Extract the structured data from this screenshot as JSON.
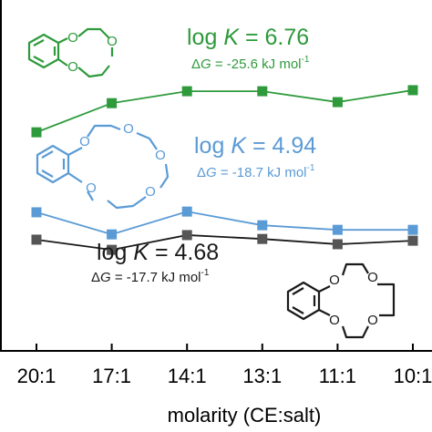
{
  "chart_data": {
    "type": "line",
    "x_label": "molarity (CE:salt)",
    "categories": [
      "20:1",
      "17:1",
      "14:1",
      "13:1",
      "11:1",
      "10:1"
    ],
    "ylim": [
      0,
      100
    ],
    "series": [
      {
        "color": "#2e9a3c",
        "values": [
          62.3,
          70.6,
          74.0,
          74.0,
          70.9,
          74.3
        ]
      },
      {
        "color": "#5b9bd5",
        "values": [
          39.5,
          33.2,
          39.7,
          35.8,
          34.5,
          34.5
        ]
      },
      {
        "color": "#1a1a1a",
        "markercolor": "#555555",
        "values": [
          31.7,
          28.8,
          33.0,
          31.9,
          30.4,
          31.4
        ]
      }
    ],
    "annotations": [
      {
        "color": "#2e9a3c",
        "logk": [
          "log ",
          "K",
          " = 6.76"
        ],
        "dg": [
          "Δ",
          "G",
          " = -25.6 kJ mol",
          "-1"
        ]
      },
      {
        "color": "#5b9bd5",
        "logk": [
          "log ",
          "K",
          " = 4.94"
        ],
        "dg": [
          "Δ",
          "G",
          " = -18.7 kJ mol",
          "-1"
        ]
      },
      {
        "color": "#1a1a1a",
        "logk": [
          "log ",
          "K",
          " = 4.68"
        ],
        "dg": [
          "Δ",
          "G",
          " = -17.7 kJ mol",
          "-1"
        ]
      }
    ],
    "atom_label": "O"
  }
}
